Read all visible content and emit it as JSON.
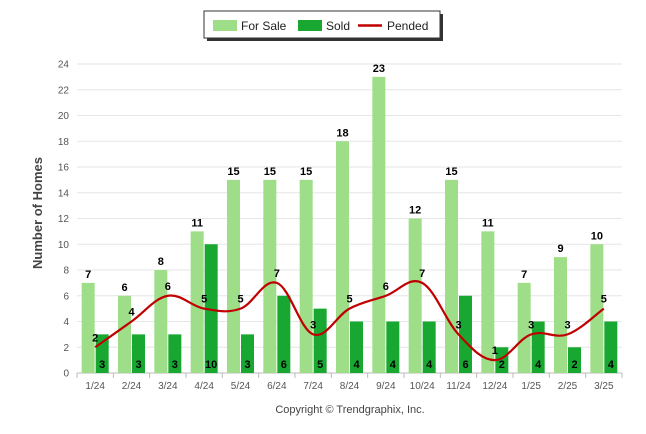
{
  "chart_data": {
    "type": "bar",
    "categories": [
      "1/24",
      "2/24",
      "3/24",
      "4/24",
      "5/24",
      "6/24",
      "7/24",
      "8/24",
      "9/24",
      "10/24",
      "11/24",
      "12/24",
      "1/25",
      "2/25",
      "3/25"
    ],
    "series": [
      {
        "name": "For Sale",
        "kind": "bar",
        "color": "#9ede88",
        "values": [
          7,
          6,
          8,
          11,
          15,
          15,
          15,
          18,
          23,
          12,
          15,
          11,
          7,
          9,
          10
        ]
      },
      {
        "name": "Sold",
        "kind": "bar",
        "color": "#18a832",
        "values": [
          3,
          3,
          3,
          10,
          3,
          6,
          5,
          4,
          4,
          4,
          6,
          2,
          4,
          2,
          4
        ]
      },
      {
        "name": "Pended",
        "kind": "line",
        "color": "#c00000",
        "values": [
          2,
          4,
          6,
          5,
          5,
          7,
          3,
          5,
          6,
          7,
          3,
          1,
          3,
          3,
          5
        ]
      }
    ],
    "title": "",
    "xlabel": "",
    "ylabel": "Number of Homes",
    "ylim": [
      0,
      24
    ],
    "yticks": [
      0,
      2,
      4,
      6,
      8,
      10,
      12,
      14,
      16,
      18,
      20,
      22,
      24
    ],
    "grid": true,
    "legend": "top-center",
    "credit": "Copyright © Trendgraphix, Inc."
  }
}
